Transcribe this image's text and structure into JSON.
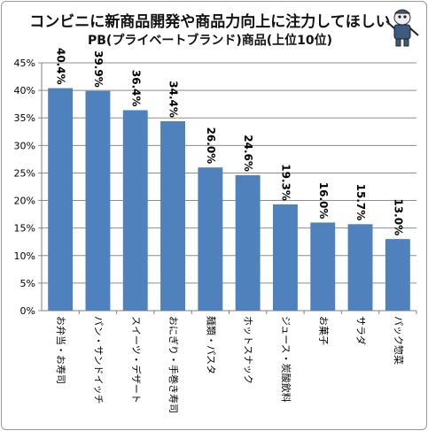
{
  "chart_data": {
    "type": "bar",
    "title": "コンビニに新商品開発や商品力向上に注力してほしい",
    "subtitle": "PB(プライベートブランド)商品(上位10位)",
    "categories": [
      "お弁当・お寿司",
      "パン・サンドイッチ",
      "スイーツ・デザート",
      "おにぎり・手巻き寿司",
      "麺類・パスタ",
      "ホットスナック",
      "ジュース・炭酸飲料",
      "お菓子",
      "サラダ",
      "パック惣菜"
    ],
    "values": [
      40.4,
      39.9,
      36.4,
      34.4,
      26.0,
      24.6,
      19.3,
      16.0,
      15.7,
      13.0
    ],
    "value_labels": [
      "40.4%",
      "39.9%",
      "36.4%",
      "34.4%",
      "26.0%",
      "24.6%",
      "19.3%",
      "16.0%",
      "15.7%",
      "13.0%"
    ],
    "ylim": [
      0,
      45
    ],
    "yticks": [
      "0%",
      "5%",
      "10%",
      "15%",
      "20%",
      "25%",
      "30%",
      "35%",
      "40%",
      "45%"
    ],
    "grid": true,
    "bar_color": "#4f81bd"
  }
}
